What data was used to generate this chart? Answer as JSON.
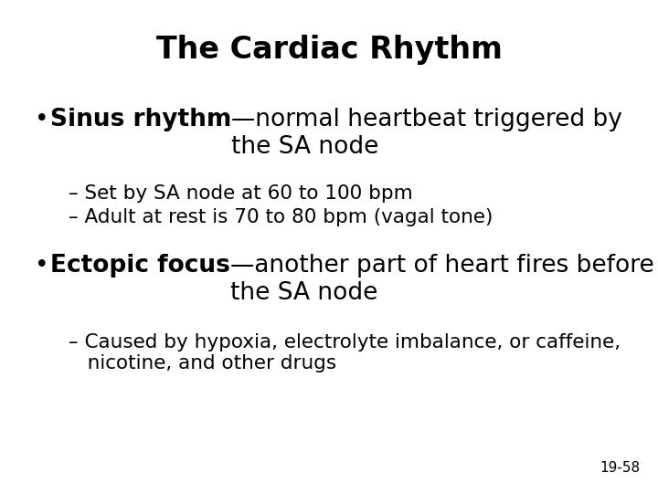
{
  "title": "The Cardiac Rhythm",
  "title_fontsize": 24,
  "bg_color": "#ffffff",
  "text_color": "#000000",
  "bullet1_bold": "Sinus rhythm",
  "bullet1_normal": "—normal heartbeat triggered by\nthe SA node",
  "sub1_1": "– Set by SA node at 60 to 100 bpm",
  "sub1_2": "– Adult at rest is 70 to 80 bpm (vagal tone)",
  "bullet2_bold": "Ectopic focus",
  "bullet2_normal": "—another part of heart fires before\nthe SA node",
  "sub2_1": "– Caused by hypoxia, electrolyte imbalance, or caffeine,\n   nicotine, and other drugs",
  "footnote": "19-58",
  "bullet_fontsize": 19,
  "subbullet_fontsize": 15.5,
  "footnote_fontsize": 11
}
